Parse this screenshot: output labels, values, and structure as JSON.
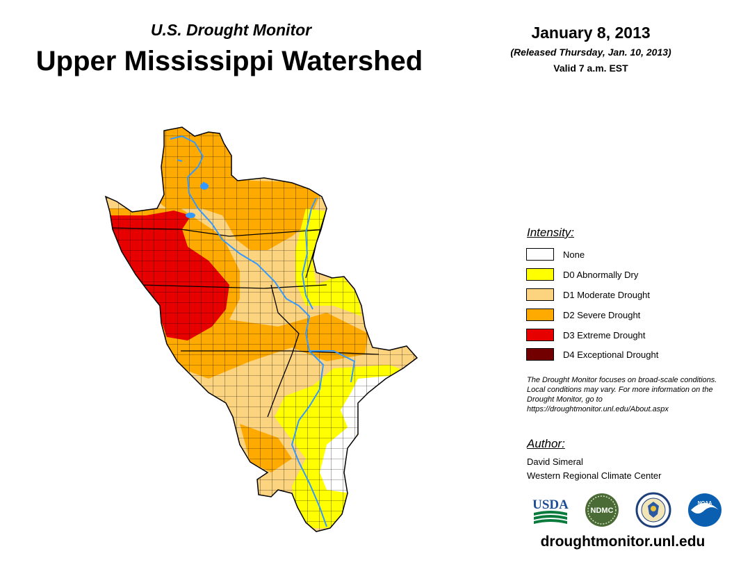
{
  "header": {
    "subtitle": "U.S. Drought Monitor",
    "title": "Upper Mississippi Watershed",
    "date": "January 8, 2013",
    "released": "(Released Thursday, Jan. 10, 2013)",
    "valid": "Valid 7 a.m. EST"
  },
  "legend": {
    "title": "Intensity:",
    "items": [
      {
        "label": "None",
        "color": "#ffffff"
      },
      {
        "label": "D0 Abnormally Dry",
        "color": "#ffff00"
      },
      {
        "label": "D1 Moderate Drought",
        "color": "#fcd37f"
      },
      {
        "label": "D2 Severe Drought",
        "color": "#ffaa00"
      },
      {
        "label": "D3 Extreme Drought",
        "color": "#e60000"
      },
      {
        "label": "D4 Exceptional Drought",
        "color": "#730000"
      }
    ]
  },
  "note": "The Drought Monitor focuses on broad-scale conditions. Local conditions may vary. For more information on the Drought Monitor, go to https://droughtmonitor.unl.edu/About.aspx",
  "author": {
    "title": "Author:",
    "name": "David Simeral",
    "organization": "Western Regional Climate Center"
  },
  "logos": {
    "usda": "USDA",
    "ndmc": "NDMC",
    "noaa": "NOAA"
  },
  "website": "droughtmonitor.unl.edu",
  "map": {
    "region": "Upper Mississippi Watershed",
    "river_color": "#3399ff"
  }
}
